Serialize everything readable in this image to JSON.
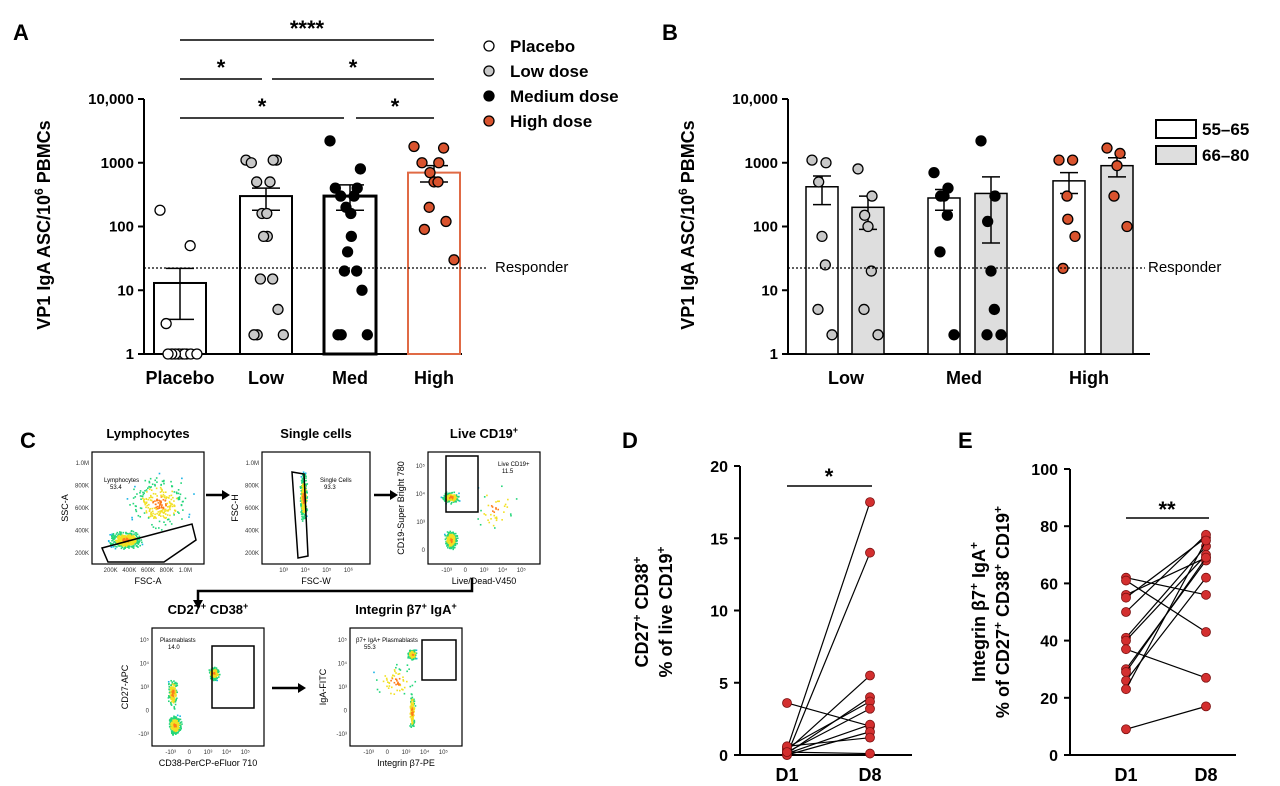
{
  "panels": {
    "a": {
      "letter": "A",
      "ylabel": "VP1 IgA ASC/10",
      "ylabel_sup": "6",
      "ylabel_end": " PBMCs",
      "responder_label": "Responder",
      "responder_value": 22,
      "legend": [
        {
          "label": "Placebo",
          "color": "#ffffff"
        },
        {
          "label": "Low dose",
          "color": "#c8c8c8"
        },
        {
          "label": "Medium dose",
          "color": "#000000"
        },
        {
          "label": "High dose",
          "color": "#d9532e"
        }
      ],
      "significance": [
        {
          "from": "Placebo",
          "to": "High",
          "label": "****"
        },
        {
          "from": "Placebo",
          "to": "Low",
          "label": "*"
        },
        {
          "from": "Low",
          "to": "High",
          "label": "*"
        },
        {
          "from": "Placebo",
          "to": "Med",
          "label": "*"
        },
        {
          "from": "Med",
          "to": "High",
          "label": "*"
        }
      ]
    },
    "b": {
      "letter": "B",
      "ylabel": "VP1 IgA ASC/10",
      "ylabel_sup": "6",
      "ylabel_end": " PBMCs",
      "responder_label": "Responder",
      "responder_value": 22,
      "legend": [
        {
          "label": "55–65",
          "color": "#ffffff"
        },
        {
          "label": "66–80",
          "color": "#dedede"
        }
      ]
    },
    "c": {
      "letter": "C",
      "plots": [
        {
          "title": "Lymphocytes",
          "xlabel": "FSC-A",
          "ylabel": "SSC-A",
          "gate": "Lymphocytes",
          "gate_value": "53.4",
          "xticks": [
            "200K",
            "400K",
            "600K",
            "800K",
            "1.0M"
          ],
          "yticks": [
            "1.0M",
            "800K",
            "600K",
            "400K",
            "200K"
          ]
        },
        {
          "title": "Single cells",
          "xlabel": "FSC-W",
          "ylabel": "FSC-H",
          "gate": "Single Cells",
          "gate_value": "93.3",
          "xticks": [
            "10³",
            "10⁴",
            "10⁵",
            "10⁶"
          ],
          "yticks": [
            "1.0M",
            "800K",
            "600K",
            "400K",
            "200K"
          ]
        },
        {
          "title": "Live CD19",
          "title_sup": "+",
          "xlabel": "Live/Dead-V450",
          "ylabel": "CD19-Super Bright 780",
          "gate": "Live CD19+",
          "gate_value": "11.5",
          "xticks": [
            "-10³",
            "0",
            "10³",
            "10⁴",
            "10⁵"
          ],
          "yticks": [
            "10⁵",
            "10⁴",
            "10³",
            "0"
          ]
        },
        {
          "title": "CD27",
          "title_sup": "+",
          "title2": " CD38",
          "title2_sup": "+",
          "xlabel": "CD38-PerCP-eFluor 710",
          "ylabel": "CD27-APC",
          "gate": "Plasmablasts",
          "gate_value": "14.0",
          "xticks": [
            "-10³",
            "0",
            "10³",
            "10⁴",
            "10⁵"
          ],
          "yticks": [
            "10⁵",
            "10⁴",
            "10³",
            "0",
            "-10³"
          ]
        },
        {
          "title": "Integrin β7",
          "title_sup": "+",
          "title2": " IgA",
          "title2_sup": "+",
          "xlabel": "Integrin β7-PE",
          "ylabel": "IgA-FITC",
          "gate": "β7+ IgA+ Plasmablasts",
          "gate_value": "55.3",
          "xticks": [
            "-10³",
            "0",
            "10³",
            "10⁴",
            "10⁵"
          ],
          "yticks": [
            "10⁵",
            "10⁴",
            "10³",
            "0",
            "-10³"
          ]
        }
      ]
    },
    "d": {
      "letter": "D",
      "ylabel1": "CD27",
      "ylabel1_sup": "+",
      "ylabel1_b": " CD38",
      "ylabel1_b_sup": "+",
      "ylabel2": "% of live CD19",
      "ylabel2_sup": "+",
      "significance": "*"
    },
    "e": {
      "letter": "E",
      "ylabel1": "Integrin β7",
      "ylabel1_sup": "+",
      "ylabel1_b": " IgA",
      "ylabel1_b_sup": "+",
      "ylabel2": "% of CD27",
      "ylabel2_sup": "+",
      "ylabel2_b": " CD38",
      "ylabel2_b_sup": "+",
      "ylabel2_c": " CD19",
      "ylabel2_c_sup": "+",
      "significance": "**"
    }
  },
  "chart_data": [
    {
      "id": "A",
      "type": "bar",
      "scale": "log",
      "ylim": [
        1,
        10000
      ],
      "yticks": [
        1,
        10,
        100,
        1000,
        10000
      ],
      "ytick_labels": [
        "1",
        "10",
        "100",
        "1000",
        "10,000"
      ],
      "categories": [
        "Placebo",
        "Low",
        "Med",
        "High"
      ],
      "ylabel": "VP1 IgA ASC/10^6 PBMCs",
      "series": [
        {
          "name": "Placebo",
          "mean": 13,
          "sem_low": 3.5,
          "sem_high": 22,
          "bar_color": "#ffffff",
          "edge": "#000000",
          "points": [
            180,
            50,
            3,
            1,
            1,
            1,
            1,
            1,
            1,
            1,
            1,
            1,
            1,
            1
          ]
        },
        {
          "name": "Low",
          "mean": 300,
          "sem_low": 180,
          "sem_high": 400,
          "bar_color": "#ffffff",
          "edge": "#000000",
          "points": [
            1100,
            1100,
            1000,
            1100,
            500,
            500,
            160,
            160,
            70,
            70,
            15,
            15,
            5,
            2,
            2,
            2
          ]
        },
        {
          "name": "Med",
          "mean": 300,
          "sem_low": 180,
          "sem_high": 450,
          "bar_color": "#ffffff",
          "edge": "#000000",
          "points": [
            2200,
            800,
            400,
            400,
            300,
            300,
            200,
            160,
            70,
            40,
            20,
            20,
            10,
            2,
            2,
            2
          ]
        },
        {
          "name": "High",
          "mean": 700,
          "sem_low": 500,
          "sem_high": 900,
          "bar_color": "#ffffff",
          "edge": "#e06a45",
          "points": [
            1800,
            1700,
            1000,
            1000,
            700,
            500,
            500,
            200,
            120,
            90,
            30
          ]
        }
      ]
    },
    {
      "id": "B",
      "type": "bar",
      "scale": "log",
      "ylim": [
        1,
        10000
      ],
      "yticks": [
        1,
        10,
        100,
        1000,
        10000
      ],
      "ytick_labels": [
        "1",
        "10",
        "100",
        "1000",
        "10,000"
      ],
      "categories": [
        "Low",
        "Med",
        "High"
      ],
      "series": [
        {
          "name": "55–65",
          "fill": "#ffffff",
          "groups": [
            {
              "mean": 420,
              "sem_low": 220,
              "sem_high": 620,
              "point_color": "#c8c8c8",
              "points": [
                1100,
                1000,
                500,
                70,
                25,
                5,
                2
              ]
            },
            {
              "mean": 280,
              "sem_low": 180,
              "sem_high": 380,
              "point_color": "#000000",
              "points": [
                700,
                400,
                300,
                300,
                150,
                40,
                2
              ]
            },
            {
              "mean": 520,
              "sem_low": 330,
              "sem_high": 700,
              "point_color": "#d9532e",
              "points": [
                1100,
                1100,
                300,
                130,
                70,
                22
              ]
            }
          ]
        },
        {
          "name": "66–80",
          "fill": "#dedede",
          "groups": [
            {
              "mean": 200,
              "sem_low": 90,
              "sem_high": 300,
              "point_color": "#c8c8c8",
              "points": [
                800,
                300,
                150,
                100,
                20,
                5,
                2
              ]
            },
            {
              "mean": 330,
              "sem_low": 55,
              "sem_high": 600,
              "point_color": "#000000",
              "points": [
                2200,
                300,
                120,
                20,
                5,
                2,
                2
              ]
            },
            {
              "mean": 900,
              "sem_low": 600,
              "sem_high": 1200,
              "point_color": "#d9532e",
              "points": [
                1700,
                1400,
                900,
                300,
                100
              ]
            }
          ]
        }
      ]
    },
    {
      "id": "D",
      "type": "line",
      "categories": [
        "D1",
        "D8"
      ],
      "ylim": [
        0,
        20
      ],
      "yticks": [
        0,
        5,
        10,
        15,
        20
      ],
      "point_color": "#d32f2f",
      "pairs": [
        [
          0.4,
          17.5
        ],
        [
          3.6,
          2.0
        ],
        [
          0.0,
          14.0
        ],
        [
          0.3,
          5.5
        ],
        [
          0.1,
          4.0
        ],
        [
          0.5,
          3.7
        ],
        [
          0.2,
          3.2
        ],
        [
          0.1,
          2.1
        ],
        [
          0.0,
          1.6
        ],
        [
          0.6,
          1.2
        ],
        [
          0.2,
          0.1
        ]
      ]
    },
    {
      "id": "E",
      "type": "line",
      "categories": [
        "D1",
        "D8"
      ],
      "ylim": [
        0,
        100
      ],
      "yticks": [
        0,
        20,
        40,
        60,
        80,
        100
      ],
      "point_color": "#d32f2f",
      "pairs": [
        [
          62,
          56
        ],
        [
          61,
          43
        ],
        [
          56,
          69
        ],
        [
          55,
          76
        ],
        [
          50,
          77
        ],
        [
          41,
          73
        ],
        [
          40,
          70
        ],
        [
          37,
          27
        ],
        [
          30,
          68
        ],
        [
          29,
          69
        ],
        [
          26,
          62
        ],
        [
          23,
          75
        ],
        [
          9,
          17
        ]
      ]
    }
  ]
}
